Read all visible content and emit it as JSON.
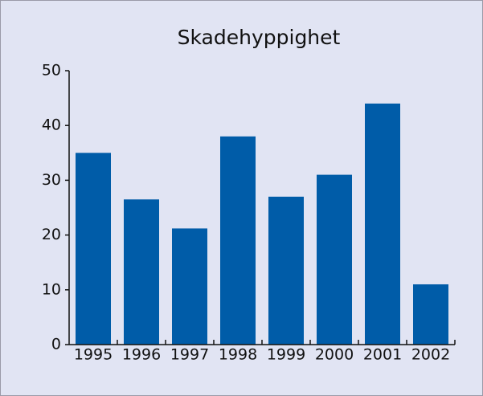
{
  "chart_data": {
    "type": "bar",
    "title": "Skadehyppighet",
    "categories": [
      "1995",
      "1996",
      "1997",
      "1998",
      "1999",
      "2000",
      "2001",
      "2002"
    ],
    "values": [
      35,
      26.5,
      21.2,
      38,
      27,
      31,
      44,
      11
    ],
    "color": "#005ca8",
    "ylim": [
      0,
      50
    ],
    "yticks": [
      0,
      10,
      20,
      30,
      40,
      50
    ],
    "grid": false
  }
}
